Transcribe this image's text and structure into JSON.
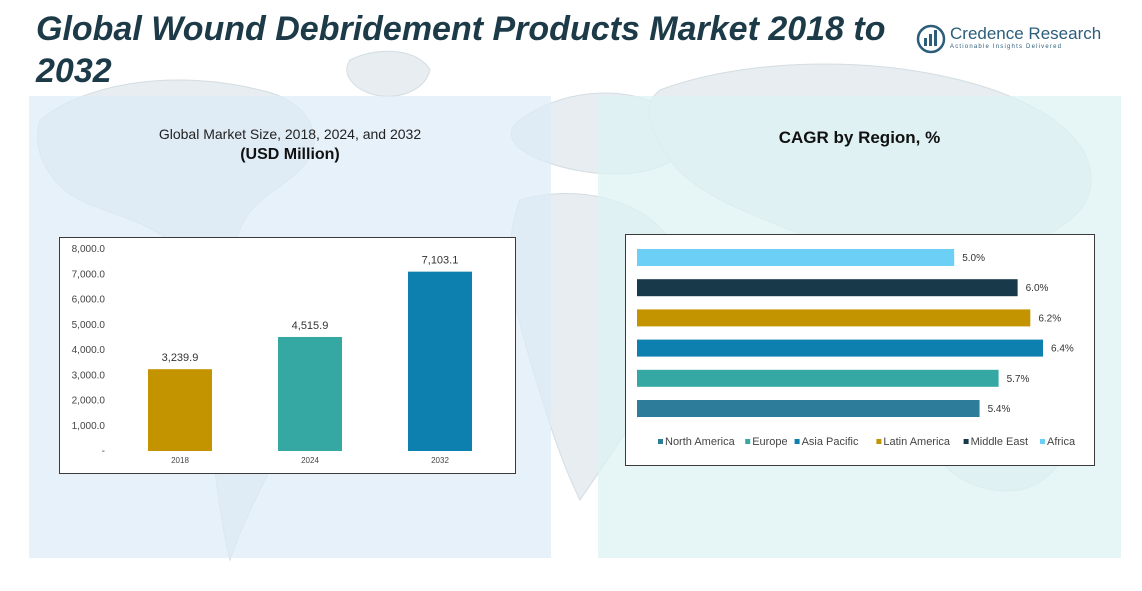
{
  "page": {
    "title": "Global Wound Debridement Products Market 2018 to 2032"
  },
  "brand": {
    "name": "Credence Research",
    "tagline": "Actionable Insights Delivered",
    "color": "#2c5d7a"
  },
  "left_panel": {
    "subtitle": "Global Market Size, 2018, 2024, and 2032",
    "unit": "(USD Million)"
  },
  "right_panel": {
    "title": "CAGR by Region, %"
  },
  "chart_data": [
    {
      "type": "bar",
      "title": "Global Market Size, 2018, 2024, and 2032",
      "subtitle": "(USD Million)",
      "categories": [
        "2018",
        "2024",
        "2032"
      ],
      "values": [
        3239.9,
        4515.9,
        7103.1
      ],
      "value_labels": [
        "3,239.9",
        "4,515.9",
        "7,103.1"
      ],
      "colors": [
        "#c49300",
        "#35a8a3",
        "#0e80b0"
      ],
      "ylim": [
        0,
        8000
      ],
      "yticks": [
        0,
        1000,
        2000,
        3000,
        4000,
        5000,
        6000,
        7000,
        8000
      ],
      "ytick_labels": [
        "-",
        "1,000.0",
        "2,000.0",
        "3,000.0",
        "4,000.0",
        "5,000.0",
        "6,000.0",
        "7,000.0",
        "8,000.0"
      ],
      "grid": false,
      "legend": "none"
    },
    {
      "type": "bar",
      "orientation": "horizontal",
      "title": "CAGR by Region, %",
      "categories": [
        "North America",
        "Europe",
        "Asia Pacific",
        "Latin America",
        "Middle East",
        "Africa"
      ],
      "values": [
        5.4,
        5.7,
        6.4,
        6.2,
        6.0,
        5.0
      ],
      "value_labels": [
        "5.4%",
        "5.7%",
        "6.4%",
        "6.2%",
        "6.0%",
        "5.0%"
      ],
      "colors": [
        "#2d7d9a",
        "#35a8a3",
        "#0e80b0",
        "#c49300",
        "#17394a",
        "#6ccff6"
      ],
      "order_top_to_bottom": [
        "Africa",
        "Middle East",
        "Latin America",
        "Asia Pacific",
        "Europe",
        "North America"
      ],
      "grid": false,
      "legend": "bottom"
    }
  ]
}
